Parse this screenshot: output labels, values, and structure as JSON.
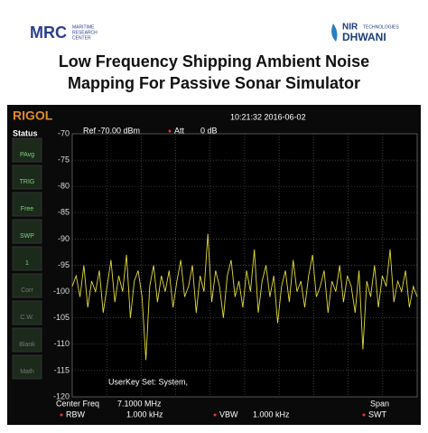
{
  "header": {
    "left_logo": "MRC",
    "left_logo_sub": [
      "MARITIME",
      "RESEARCH",
      "CENTER"
    ],
    "right_logo_top": "NIR",
    "right_logo_small": "TECHNOLOGIES",
    "right_logo_main": "DHWANI",
    "title_lines": [
      "Low Frequency Shipping Ambient Noise",
      "Mapping For Passive Sonar Simulator"
    ]
  },
  "screen": {
    "brand": "RIGOL",
    "timestamp": "10:21:32 2016-06-02",
    "ref": "Ref -70.00 dBm",
    "att_label": "Att",
    "att_value": "0 dB",
    "status": "Status",
    "side_buttons": [
      "PAvg",
      "TRIG",
      "Free",
      "SWP",
      "1",
      "Corr",
      "C.W.",
      "Blank",
      "Math"
    ],
    "userkey": "UserKey Set:   System,",
    "center_freq_label": "Center Freq",
    "center_freq_value": "7.1000 MHz",
    "span_label": "Span",
    "rbw_label": "RBW",
    "rbw_value": "1.000 kHz",
    "vbw_label": "VBW",
    "vbw_value": "1.000 kHz",
    "swt_label": "SWT"
  },
  "chart_data": {
    "type": "line",
    "color": "#e6dc3c",
    "ylim": [
      -120,
      -70
    ],
    "yticks": [
      -70,
      -75,
      -80,
      -85,
      -90,
      -95,
      -100,
      -105,
      -110,
      -115,
      -120
    ],
    "grid": true,
    "values": [
      -99,
      -97,
      -101,
      -95,
      -103,
      -98,
      -100,
      -96,
      -104,
      -99,
      -94,
      -102,
      -97,
      -100,
      -93,
      -105,
      -98,
      -96,
      -101,
      -113,
      -99,
      -95,
      -102,
      -97,
      -100,
      -96,
      -103,
      -98,
      -94,
      -101,
      -99,
      -95,
      -104,
      -97,
      -100,
      -89,
      -102,
      -96,
      -99,
      -105,
      -97,
      -94,
      -101,
      -98,
      -103,
      -96,
      -100,
      -92,
      -104,
      -98,
      -95,
      -101,
      -97,
      -106,
      -99,
      -96,
      -102,
      -94,
      -100,
      -98,
      -103,
      -97,
      -93,
      -101,
      -99,
      -96,
      -104,
      -98,
      -100,
      -95,
      -102,
      -97,
      -99,
      -104,
      -96,
      -111,
      -98,
      -101,
      -95,
      -103,
      -97,
      -99,
      -92,
      -102,
      -98,
      -100,
      -96,
      -103,
      -99,
      -101
    ]
  }
}
